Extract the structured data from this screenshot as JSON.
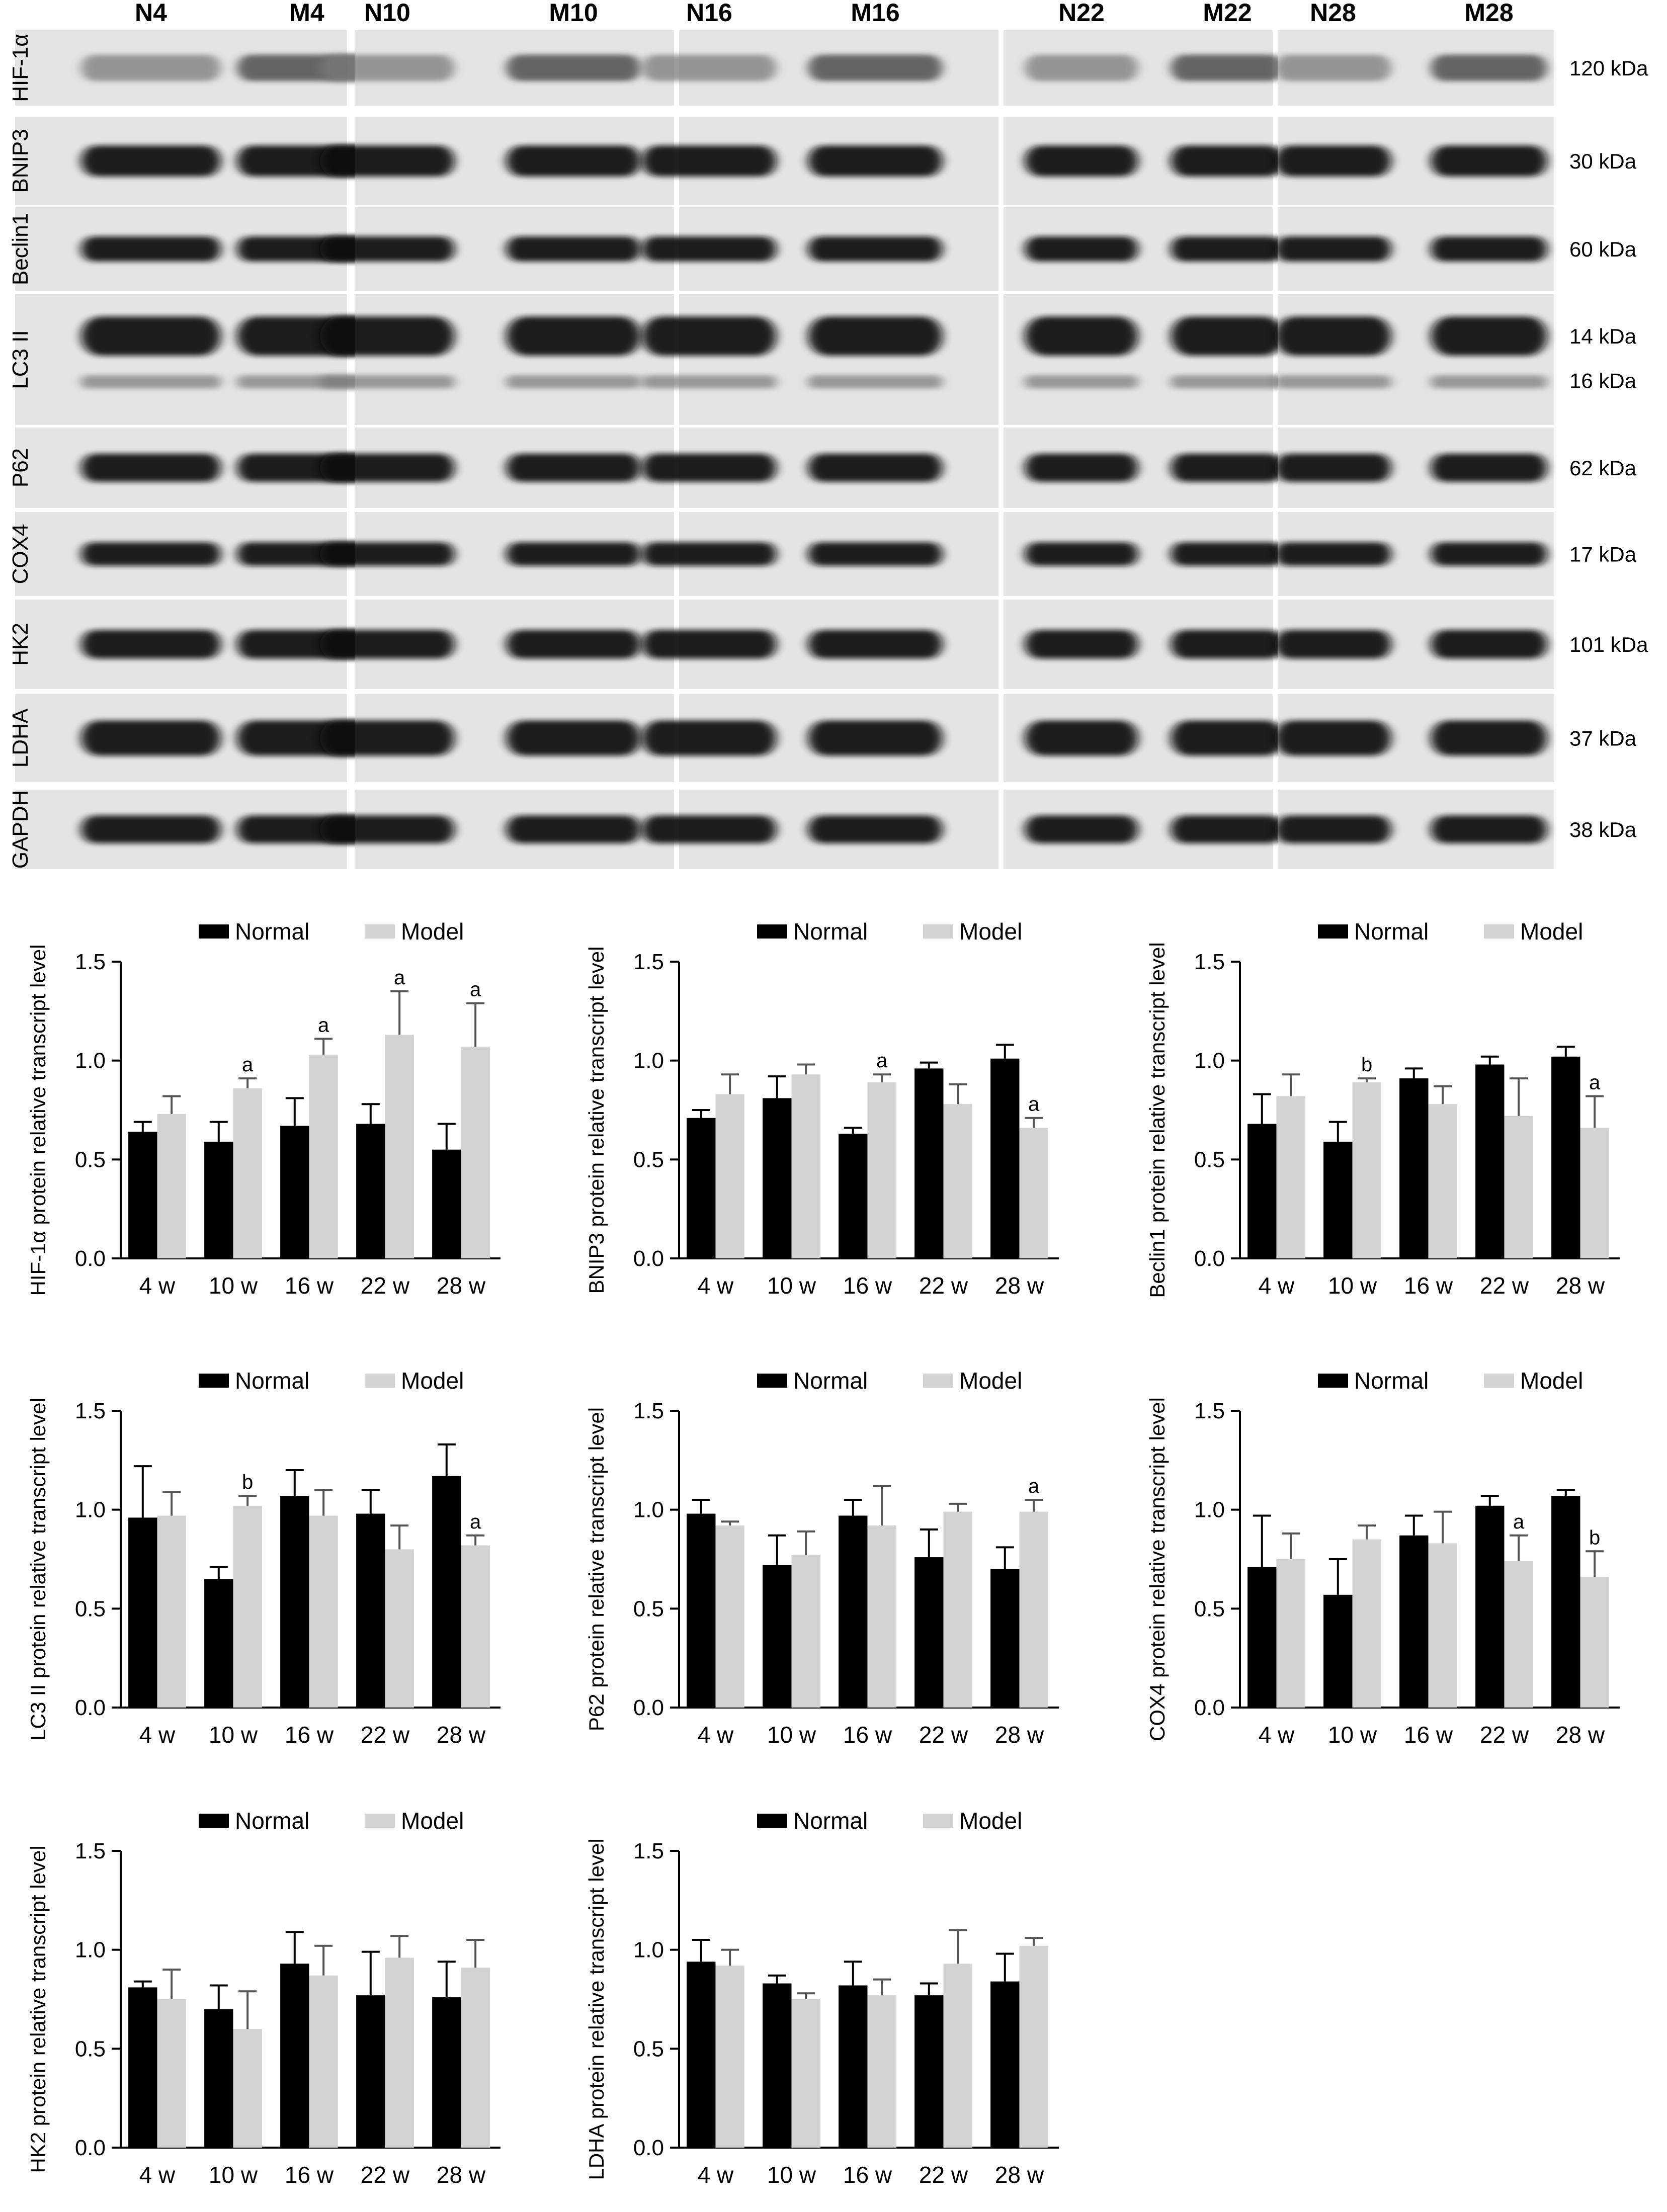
{
  "blot": {
    "lanes": [
      "N4",
      "M4",
      "N10",
      "M10",
      "N16",
      "M16",
      "N22",
      "M22",
      "N28",
      "M28"
    ],
    "rows": [
      {
        "protein": "HIF-1α",
        "size": "120 kDa"
      },
      {
        "protein": "BNIP3",
        "size": "30 kDa"
      },
      {
        "protein": "Beclin1",
        "size": "60 kDa"
      },
      {
        "protein": "LC3 II",
        "size": "14 kDa",
        "size2": "16 kDa"
      },
      {
        "protein": "P62",
        "size": "62 kDa"
      },
      {
        "protein": "COX4",
        "size": "17 kDa"
      },
      {
        "protein": "HK2",
        "size": "101 kDa"
      },
      {
        "protein": "LDHA",
        "size": "37 kDa"
      },
      {
        "protein": "GAPDH",
        "size": "38 kDa"
      }
    ]
  },
  "colors": {
    "normal": "#000000",
    "model": "#d3d3d3"
  },
  "chart_data": [
    {
      "type": "bar",
      "categories": [
        "4 w",
        "10 w",
        "16 w",
        "22 w",
        "28 w"
      ],
      "ylabel": "HIF-1α protein relative transcript level",
      "ylim": [
        0,
        1.5
      ],
      "yticks": [
        "0.0",
        "0.5",
        "1.0",
        "1.5"
      ],
      "legend": "top",
      "series": [
        {
          "name": "Normal",
          "values": [
            0.64,
            0.59,
            0.67,
            0.68,
            0.55
          ],
          "errors": [
            0.05,
            0.1,
            0.14,
            0.1,
            0.13
          ],
          "sig": [
            "",
            "",
            "",
            "",
            ""
          ]
        },
        {
          "name": "Model",
          "values": [
            0.73,
            0.86,
            1.03,
            1.13,
            1.07
          ],
          "errors": [
            0.09,
            0.05,
            0.08,
            0.22,
            0.22
          ],
          "sig": [
            "",
            "a",
            "a",
            "a",
            "a"
          ]
        }
      ]
    },
    {
      "type": "bar",
      "categories": [
        "4 w",
        "10 w",
        "16 w",
        "22 w",
        "28 w"
      ],
      "ylabel": "BNIP3 protein relative transcript level",
      "ylim": [
        0,
        1.5
      ],
      "yticks": [
        "0.0",
        "0.5",
        "1.0",
        "1.5"
      ],
      "legend": "top",
      "series": [
        {
          "name": "Normal",
          "values": [
            0.71,
            0.81,
            0.63,
            0.96,
            1.01
          ],
          "errors": [
            0.04,
            0.11,
            0.03,
            0.03,
            0.07
          ],
          "sig": [
            "",
            "",
            "",
            "",
            ""
          ]
        },
        {
          "name": "Model",
          "values": [
            0.83,
            0.93,
            0.89,
            0.78,
            0.66
          ],
          "errors": [
            0.1,
            0.05,
            0.04,
            0.1,
            0.05
          ],
          "sig": [
            "",
            "",
            "a",
            "",
            "a"
          ]
        }
      ]
    },
    {
      "type": "bar",
      "categories": [
        "4 w",
        "10 w",
        "16 w",
        "22 w",
        "28 w"
      ],
      "ylabel": "Beclin1 protein relative transcript level",
      "ylim": [
        0,
        1.5
      ],
      "yticks": [
        "0.0",
        "0.5",
        "1.0",
        "1.5"
      ],
      "legend": "top",
      "series": [
        {
          "name": "Normal",
          "values": [
            0.68,
            0.59,
            0.91,
            0.98,
            1.02
          ],
          "errors": [
            0.15,
            0.1,
            0.05,
            0.04,
            0.05
          ],
          "sig": [
            "",
            "",
            "",
            "",
            ""
          ]
        },
        {
          "name": "Model",
          "values": [
            0.82,
            0.89,
            0.78,
            0.72,
            0.66
          ],
          "errors": [
            0.11,
            0.02,
            0.09,
            0.19,
            0.16
          ],
          "sig": [
            "",
            "b",
            "",
            "",
            "a"
          ]
        }
      ]
    },
    {
      "type": "bar",
      "categories": [
        "4 w",
        "10 w",
        "16 w",
        "22 w",
        "28 w"
      ],
      "ylabel": "LC3 II protein relative transcript level",
      "ylim": [
        0,
        1.5
      ],
      "yticks": [
        "0.0",
        "0.5",
        "1.0",
        "1.5"
      ],
      "legend": "top",
      "series": [
        {
          "name": "Normal",
          "values": [
            0.96,
            0.65,
            1.07,
            0.98,
            1.17
          ],
          "errors": [
            0.26,
            0.06,
            0.13,
            0.12,
            0.16
          ],
          "sig": [
            "",
            "",
            "",
            "",
            ""
          ]
        },
        {
          "name": "Model",
          "values": [
            0.97,
            1.02,
            0.97,
            0.8,
            0.82
          ],
          "errors": [
            0.12,
            0.05,
            0.13,
            0.12,
            0.05
          ],
          "sig": [
            "",
            "b",
            "",
            "",
            "a"
          ]
        }
      ]
    },
    {
      "type": "bar",
      "categories": [
        "4 w",
        "10 w",
        "16 w",
        "22 w",
        "28 w"
      ],
      "ylabel": "P62 protein relative transcript level",
      "ylim": [
        0,
        1.5
      ],
      "yticks": [
        "0.0",
        "0.5",
        "1.0",
        "1.5"
      ],
      "legend": "top",
      "series": [
        {
          "name": "Normal",
          "values": [
            0.98,
            0.72,
            0.97,
            0.76,
            0.7
          ],
          "errors": [
            0.07,
            0.15,
            0.08,
            0.14,
            0.11
          ],
          "sig": [
            "",
            "",
            "",
            "",
            ""
          ]
        },
        {
          "name": "Model",
          "values": [
            0.92,
            0.77,
            0.92,
            0.99,
            0.99
          ],
          "errors": [
            0.02,
            0.12,
            0.2,
            0.04,
            0.06
          ],
          "sig": [
            "",
            "",
            "",
            "",
            "a"
          ]
        }
      ]
    },
    {
      "type": "bar",
      "categories": [
        "4 w",
        "10 w",
        "16 w",
        "22 w",
        "28 w"
      ],
      "ylabel": "COX4 protein relative transcript level",
      "ylim": [
        0,
        1.5
      ],
      "yticks": [
        "0.0",
        "0.5",
        "1.0",
        "1.5"
      ],
      "legend": "top",
      "series": [
        {
          "name": "Normal",
          "values": [
            0.71,
            0.57,
            0.87,
            1.02,
            1.07
          ],
          "errors": [
            0.26,
            0.18,
            0.1,
            0.05,
            0.03
          ],
          "sig": [
            "",
            "",
            "",
            "",
            ""
          ]
        },
        {
          "name": "Model",
          "values": [
            0.75,
            0.85,
            0.83,
            0.74,
            0.66
          ],
          "errors": [
            0.13,
            0.07,
            0.16,
            0.13,
            0.13
          ],
          "sig": [
            "",
            "",
            "",
            "a",
            "b"
          ]
        }
      ]
    },
    {
      "type": "bar",
      "categories": [
        "4 w",
        "10 w",
        "16 w",
        "22 w",
        "28 w"
      ],
      "ylabel": "HK2 protein relative transcript level",
      "ylim": [
        0,
        1.5
      ],
      "yticks": [
        "0.0",
        "0.5",
        "1.0",
        "1.5"
      ],
      "legend": "top",
      "series": [
        {
          "name": "Normal",
          "values": [
            0.81,
            0.7,
            0.93,
            0.77,
            0.76
          ],
          "errors": [
            0.03,
            0.12,
            0.16,
            0.22,
            0.18
          ],
          "sig": [
            "",
            "",
            "",
            "",
            ""
          ]
        },
        {
          "name": "Model",
          "values": [
            0.75,
            0.6,
            0.87,
            0.96,
            0.91
          ],
          "errors": [
            0.15,
            0.19,
            0.15,
            0.11,
            0.14
          ],
          "sig": [
            "",
            "",
            "",
            "",
            ""
          ]
        }
      ]
    },
    {
      "type": "bar",
      "categories": [
        "4 w",
        "10 w",
        "16 w",
        "22 w",
        "28 w"
      ],
      "ylabel": "LDHA protein relative transcript level",
      "ylim": [
        0,
        1.5
      ],
      "yticks": [
        "0.0",
        "0.5",
        "1.0",
        "1.5"
      ],
      "legend": "top",
      "series": [
        {
          "name": "Normal",
          "values": [
            0.94,
            0.83,
            0.82,
            0.77,
            0.84
          ],
          "errors": [
            0.11,
            0.04,
            0.12,
            0.06,
            0.14
          ],
          "sig": [
            "",
            "",
            "",
            "",
            ""
          ]
        },
        {
          "name": "Model",
          "values": [
            0.92,
            0.75,
            0.77,
            0.93,
            1.02
          ],
          "errors": [
            0.08,
            0.03,
            0.08,
            0.17,
            0.04
          ],
          "sig": [
            "",
            "",
            "",
            "",
            ""
          ]
        }
      ]
    }
  ]
}
